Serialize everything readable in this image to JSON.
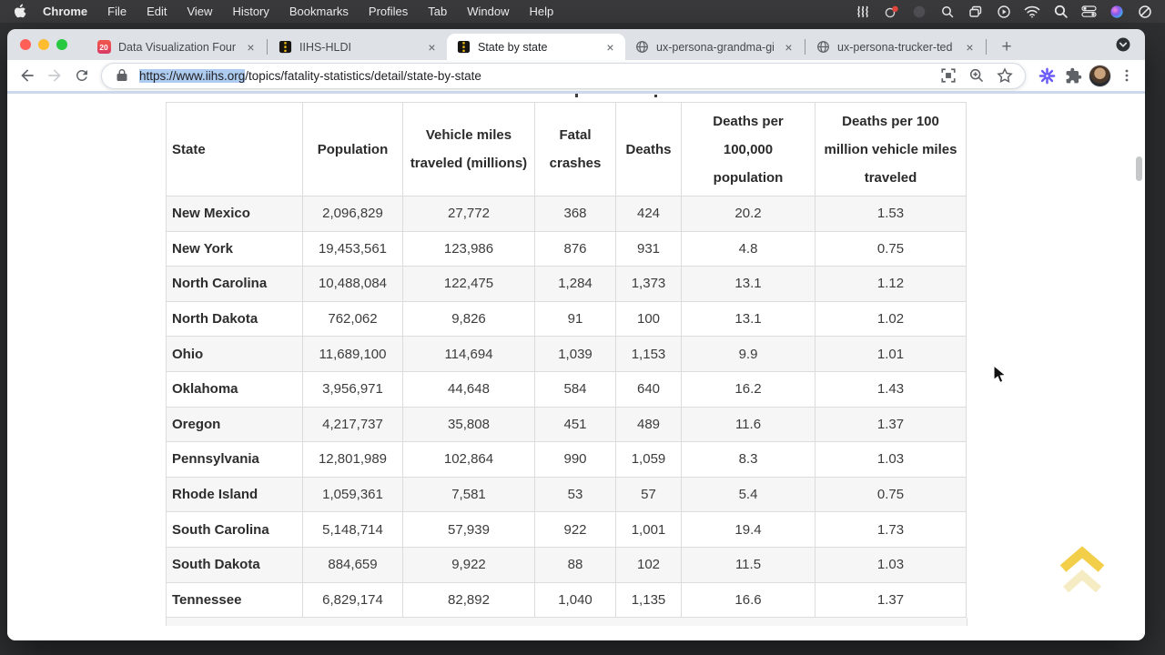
{
  "menu_bar": {
    "items": [
      "Chrome",
      "File",
      "Edit",
      "View",
      "History",
      "Bookmarks",
      "Profiles",
      "Tab",
      "Window",
      "Help"
    ],
    "status_icons": [
      "waves-icon",
      "record-badge-icon",
      "dimmed-app-icon",
      "magnifier-icon",
      "window-stack-icon",
      "play-circle-icon",
      "wifi-icon",
      "spotlight-search-icon",
      "control-center-icon",
      "siri-icon",
      "do-not-disturb-icon"
    ]
  },
  "browser": {
    "tabs": [
      {
        "title": "Data Visualization Founda",
        "favicon": "calendar",
        "favicon_label": "20",
        "active": false
      },
      {
        "title": "IIHS-HLDI",
        "favicon": "road",
        "active": false
      },
      {
        "title": "State by state",
        "favicon": "road",
        "active": true
      },
      {
        "title": "ux-persona-grandma-gin",
        "favicon": "globe",
        "active": false
      },
      {
        "title": "ux-persona-trucker-ted",
        "favicon": "globe",
        "active": false
      }
    ],
    "glyphs": {
      "tab_close": "×",
      "new_tab": "+"
    },
    "url": {
      "selected": "https://www.iihs.org",
      "rest": "/topics/fatality-statistics/detail/state-by-state"
    }
  },
  "page": {
    "table": {
      "headers": [
        "State",
        "Population",
        "Vehicle miles traveled (millions)",
        "Fatal crashes",
        "Deaths",
        "Deaths per 100,000 population",
        "Deaths per 100 million vehicle miles traveled"
      ],
      "rows": [
        {
          "cells": [
            "New Mexico",
            "2,096,829",
            "27,772",
            "368",
            "424",
            "20.2",
            "1.53"
          ]
        },
        {
          "cells": [
            "New York",
            "19,453,561",
            "123,986",
            "876",
            "931",
            "4.8",
            "0.75"
          ]
        },
        {
          "cells": [
            "North Carolina",
            "10,488,084",
            "122,475",
            "1,284",
            "1,373",
            "13.1",
            "1.12"
          ]
        },
        {
          "cells": [
            "North Dakota",
            "762,062",
            "9,826",
            "91",
            "100",
            "13.1",
            "1.02"
          ]
        },
        {
          "cells": [
            "Ohio",
            "11,689,100",
            "114,694",
            "1,039",
            "1,153",
            "9.9",
            "1.01"
          ]
        },
        {
          "cells": [
            "Oklahoma",
            "3,956,971",
            "44,648",
            "584",
            "640",
            "16.2",
            "1.43"
          ]
        },
        {
          "cells": [
            "Oregon",
            "4,217,737",
            "35,808",
            "451",
            "489",
            "11.6",
            "1.37"
          ]
        },
        {
          "cells": [
            "Pennsylvania",
            "12,801,989",
            "102,864",
            "990",
            "1,059",
            "8.3",
            "1.03"
          ]
        },
        {
          "cells": [
            "Rhode Island",
            "1,059,361",
            "7,581",
            "53",
            "57",
            "5.4",
            "0.75"
          ]
        },
        {
          "cells": [
            "South Carolina",
            "5,148,714",
            "57,939",
            "922",
            "1,001",
            "19.4",
            "1.73"
          ]
        },
        {
          "cells": [
            "South Dakota",
            "884,659",
            "9,922",
            "88",
            "102",
            "11.5",
            "1.03"
          ]
        },
        {
          "cells": [
            "Tennessee",
            "6,829,174",
            "82,892",
            "1,040",
            "1,135",
            "16.6",
            "1.37"
          ]
        }
      ]
    }
  }
}
